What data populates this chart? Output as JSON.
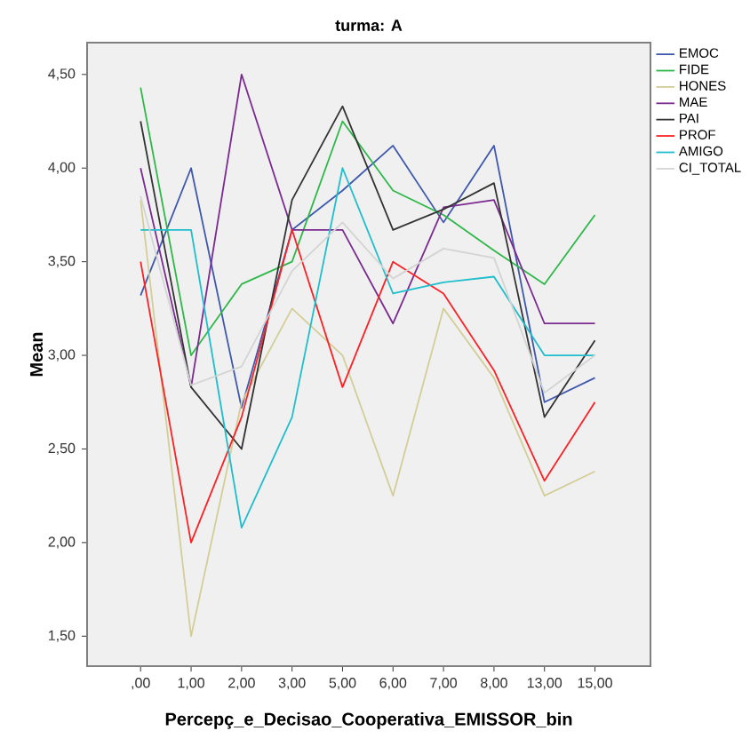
{
  "chart_data": {
    "type": "line",
    "title": "turma: A",
    "xlabel": "Percepç_e_Decisao_Cooperativa_EMISSOR_bin",
    "ylabel": "Mean",
    "categories": [
      ",00",
      "1,00",
      "2,00",
      "3,00",
      "5,00",
      "6,00",
      "7,00",
      "8,00",
      "13,00",
      "15,00"
    ],
    "ylim": [
      1.34,
      4.67
    ],
    "yticks": [
      {
        "value": 1.5,
        "label": "1,50"
      },
      {
        "value": 2.0,
        "label": "2,00"
      },
      {
        "value": 2.5,
        "label": "2,50"
      },
      {
        "value": 3.0,
        "label": "3,00"
      },
      {
        "value": 3.5,
        "label": "3,50"
      },
      {
        "value": 4.0,
        "label": "4,00"
      },
      {
        "value": 4.5,
        "label": "4,50"
      }
    ],
    "legend": "top right",
    "grid": false,
    "marker": "none",
    "line_style": "solid",
    "series": [
      {
        "name": "EMOC",
        "color": "#3e58ac",
        "values": [
          3.32,
          4.0,
          2.72,
          3.67,
          3.88,
          4.12,
          3.71,
          4.12,
          2.75,
          2.88
        ]
      },
      {
        "name": "FIDE",
        "color": "#2eb848",
        "values": [
          4.43,
          3.0,
          3.38,
          3.5,
          4.25,
          3.88,
          3.75,
          3.56,
          3.38,
          3.75
        ]
      },
      {
        "name": "HONES",
        "color": "#d3ce97",
        "values": [
          3.83,
          1.5,
          2.75,
          3.25,
          3.0,
          2.25,
          3.25,
          2.88,
          2.25,
          2.38
        ]
      },
      {
        "name": "MAE",
        "color": "#7b2a90",
        "values": [
          4.0,
          2.83,
          4.5,
          3.67,
          3.67,
          3.17,
          3.79,
          3.83,
          3.17,
          3.17
        ]
      },
      {
        "name": "PAI",
        "color": "#333333",
        "values": [
          4.25,
          2.83,
          2.5,
          3.83,
          4.33,
          3.67,
          3.78,
          3.92,
          2.67,
          3.08
        ]
      },
      {
        "name": "PROF",
        "color": "#fb2125",
        "values": [
          3.5,
          2.0,
          2.67,
          3.67,
          2.83,
          3.5,
          3.33,
          2.92,
          2.33,
          2.75
        ]
      },
      {
        "name": "AMIGO",
        "color": "#1fbecd",
        "values": [
          3.67,
          3.67,
          2.08,
          2.67,
          4.0,
          3.33,
          3.39,
          3.42,
          3.0,
          3.0
        ]
      },
      {
        "name": "CI_TOTAL",
        "color": "#d4d4d4",
        "values": [
          3.85,
          2.84,
          2.94,
          3.45,
          3.71,
          3.41,
          3.57,
          3.52,
          2.8,
          3.0
        ]
      }
    ]
  }
}
